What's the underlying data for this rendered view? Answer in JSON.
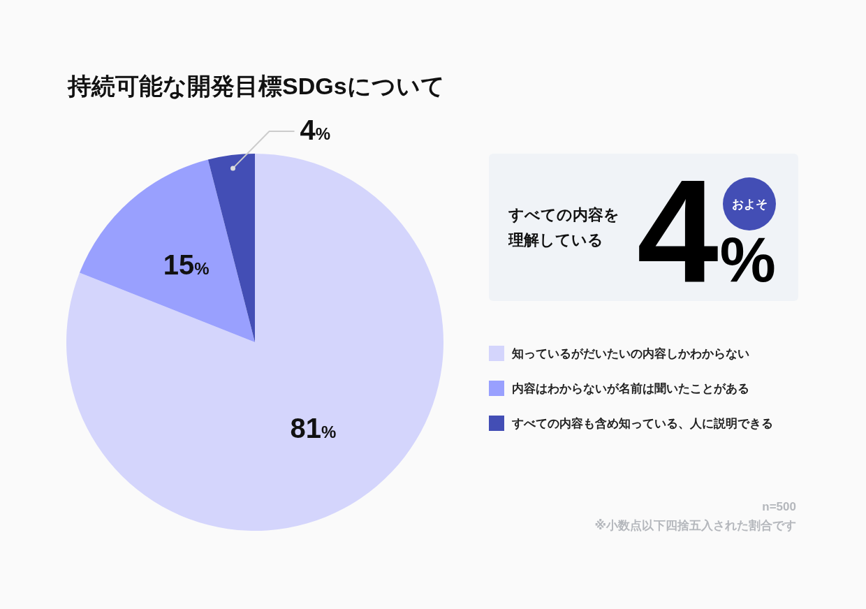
{
  "chart_data": [
    {
      "type": "pie",
      "title": "持続可能な開発目標SDGsについて",
      "categories": [
        "知っているがだいたいの内容しかわからない",
        "内容はわからないが名前は聞いたことがある",
        "すべての内容も含め知っている、人に説明できる"
      ],
      "values": [
        81,
        15,
        4
      ],
      "colors": [
        "#d4d5fc",
        "#99a0fe",
        "#434eb5"
      ],
      "value_labels": [
        "81%",
        "15%",
        "4%"
      ],
      "legend": "right",
      "annotations": [
        "n=500",
        "※小数点以下四捨五入された割合です"
      ]
    },
    {
      "type": "other",
      "title": "すべての内容を理解している",
      "annotations": [
        "およそ",
        "4%"
      ]
    }
  ]
}
